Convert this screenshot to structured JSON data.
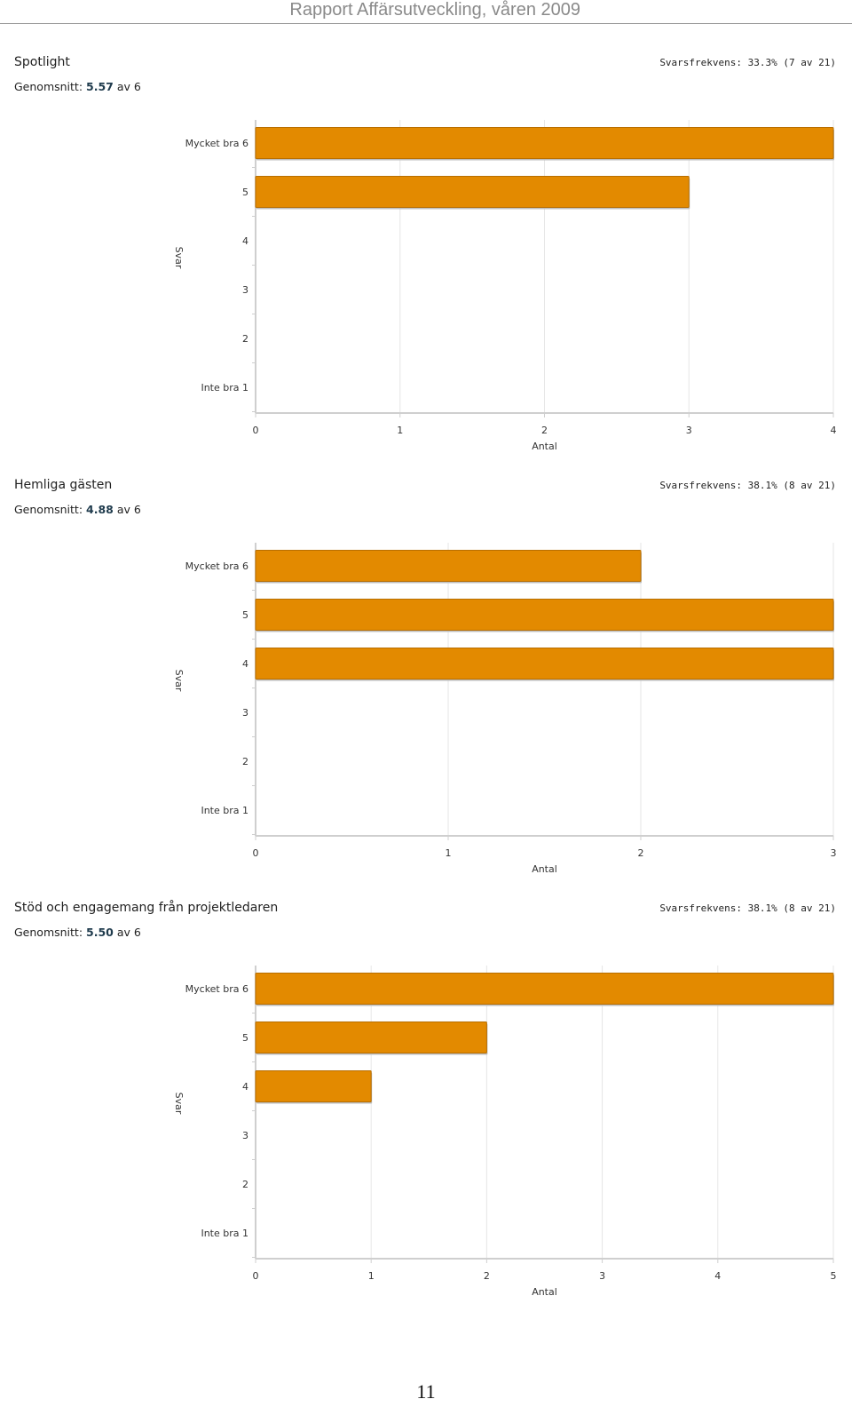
{
  "header": {
    "title": "Rapport Affärsutveckling, våren 2009"
  },
  "theme": {
    "bar_color": "#e38a00",
    "bar_edge": "#b86e00",
    "grid_color": "#e6e6e6",
    "axis_color": "#cfcfcf"
  },
  "sections": [
    {
      "title": "Spotlight",
      "response_rate": "Svarsfrekvens: 33.3% (7 av 21)",
      "average_label": "Genomsnitt:",
      "average_value": "5.57",
      "average_suffix": "av 6"
    },
    {
      "title": "Hemliga gästen",
      "response_rate": "Svarsfrekvens: 38.1% (8 av 21)",
      "average_label": "Genomsnitt:",
      "average_value": "4.88",
      "average_suffix": "av 6"
    },
    {
      "title": "Stöd och engagemang från projektledaren",
      "response_rate": "Svarsfrekvens: 38.1% (8 av 21)",
      "average_label": "Genomsnitt:",
      "average_value": "5.50",
      "average_suffix": "av 6"
    }
  ],
  "chart_data": [
    {
      "type": "bar",
      "orientation": "horizontal",
      "categories": [
        "Mycket bra 6",
        "5",
        "4",
        "3",
        "2",
        "Inte bra 1"
      ],
      "values": [
        4,
        3,
        0,
        0,
        0,
        0
      ],
      "xlabel": "Antal",
      "ylabel": "Svar",
      "xlim": [
        0,
        4
      ],
      "xticks": [
        "0",
        "1",
        "2",
        "3",
        "4"
      ],
      "grid": true
    },
    {
      "type": "bar",
      "orientation": "horizontal",
      "categories": [
        "Mycket bra 6",
        "5",
        "4",
        "3",
        "2",
        "Inte bra 1"
      ],
      "values": [
        2,
        3,
        3,
        0,
        0,
        0
      ],
      "xlabel": "Antal",
      "ylabel": "Svar",
      "xlim": [
        0,
        3
      ],
      "xticks": [
        "0",
        "1",
        "2",
        "3"
      ],
      "grid": true
    },
    {
      "type": "bar",
      "orientation": "horizontal",
      "categories": [
        "Mycket bra 6",
        "5",
        "4",
        "3",
        "2",
        "Inte bra 1"
      ],
      "values": [
        5,
        2,
        1,
        0,
        0,
        0
      ],
      "xlabel": "Antal",
      "ylabel": "Svar",
      "xlim": [
        0,
        5
      ],
      "xticks": [
        "0",
        "1",
        "2",
        "3",
        "4",
        "5"
      ],
      "grid": true
    }
  ],
  "footer": {
    "page_number": "11"
  }
}
